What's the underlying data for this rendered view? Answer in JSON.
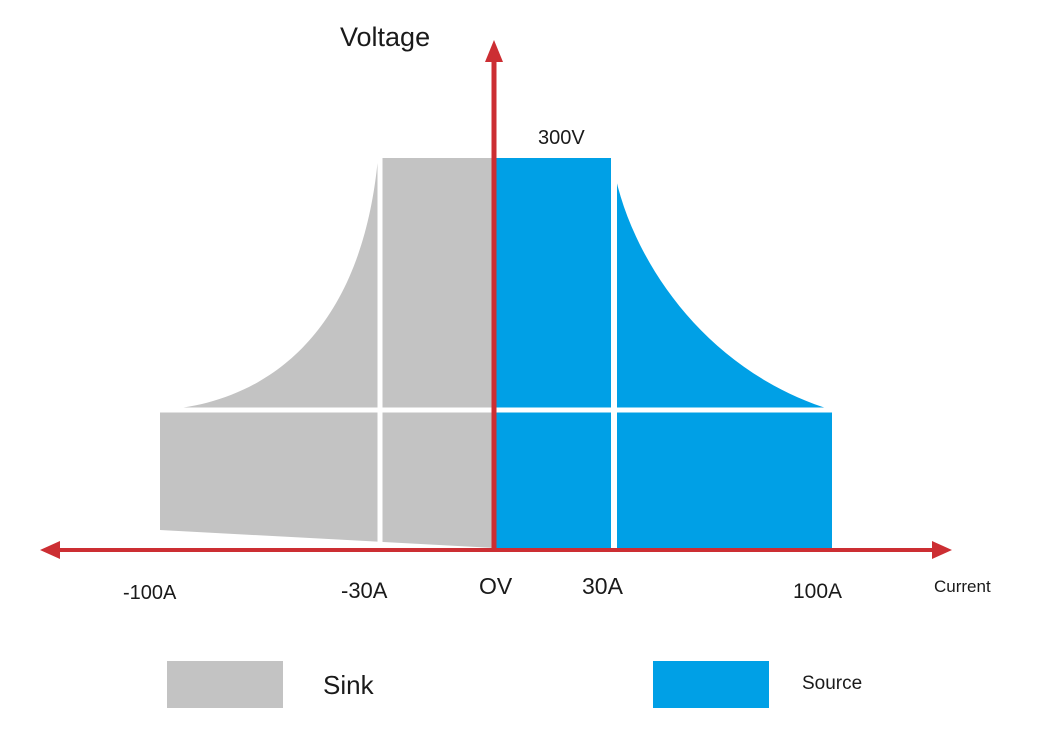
{
  "axes": {
    "y_label": "Voltage",
    "x_label": "Current",
    "origin_label": "OV",
    "max_voltage_label": "300V",
    "current_ticks": [
      "-100A",
      "-30A",
      "30A",
      "100A"
    ]
  },
  "regions": {
    "sink": {
      "label": "Sink",
      "color": "#c3c3c3"
    },
    "source": {
      "label": "Source",
      "color": "#00a0e6"
    }
  },
  "axis_color": "#cc2e33"
}
